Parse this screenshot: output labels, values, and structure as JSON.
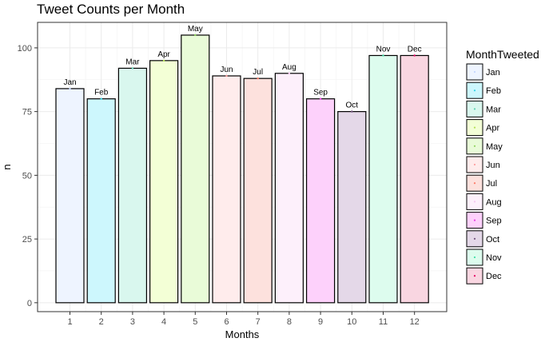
{
  "chart_data": {
    "type": "bar",
    "title": "Tweet Counts per Month",
    "xlabel": "Months",
    "ylabel": "n",
    "categories": [
      "1",
      "2",
      "3",
      "4",
      "5",
      "6",
      "7",
      "8",
      "9",
      "10",
      "11",
      "12"
    ],
    "bar_labels": [
      "Jan",
      "Feb",
      "Mar",
      "Apr",
      "May",
      "Jun",
      "Jul",
      "Aug",
      "Sep",
      "Oct",
      "Nov",
      "Dec"
    ],
    "values": [
      84,
      80,
      92,
      95,
      105,
      89,
      88,
      90,
      80,
      75,
      97,
      97
    ],
    "ylim": [
      -3.5,
      110
    ],
    "yticks": [
      0,
      25,
      50,
      75,
      100
    ],
    "grid": true,
    "legend": {
      "title": "MonthTweeted",
      "position": "right",
      "entries": [
        "Jan",
        "Feb",
        "Mar",
        "Apr",
        "May",
        "Jun",
        "Jul",
        "Aug",
        "Sep",
        "Oct",
        "Nov",
        "Dec"
      ]
    },
    "colors": {
      "fills": [
        "#eef4ff",
        "#cdf7fd",
        "#d9f7ee",
        "#f3ffd6",
        "#e9fbd8",
        "#ffecec",
        "#fde1dd",
        "#fdf0fb",
        "#fdd1fb",
        "#e4d8e8",
        "#ddfcee",
        "#f9d6e1"
      ],
      "points": [
        "#c4d6ff",
        "#33d6e8",
        "#5fd3b3",
        "#b5e255",
        "#8ed45c",
        "#ff9f9f",
        "#ff7a66",
        "#f5c6f0",
        "#ea3ee4",
        "#6f4f7a",
        "#3fe0a6",
        "#e5005f"
      ]
    }
  }
}
